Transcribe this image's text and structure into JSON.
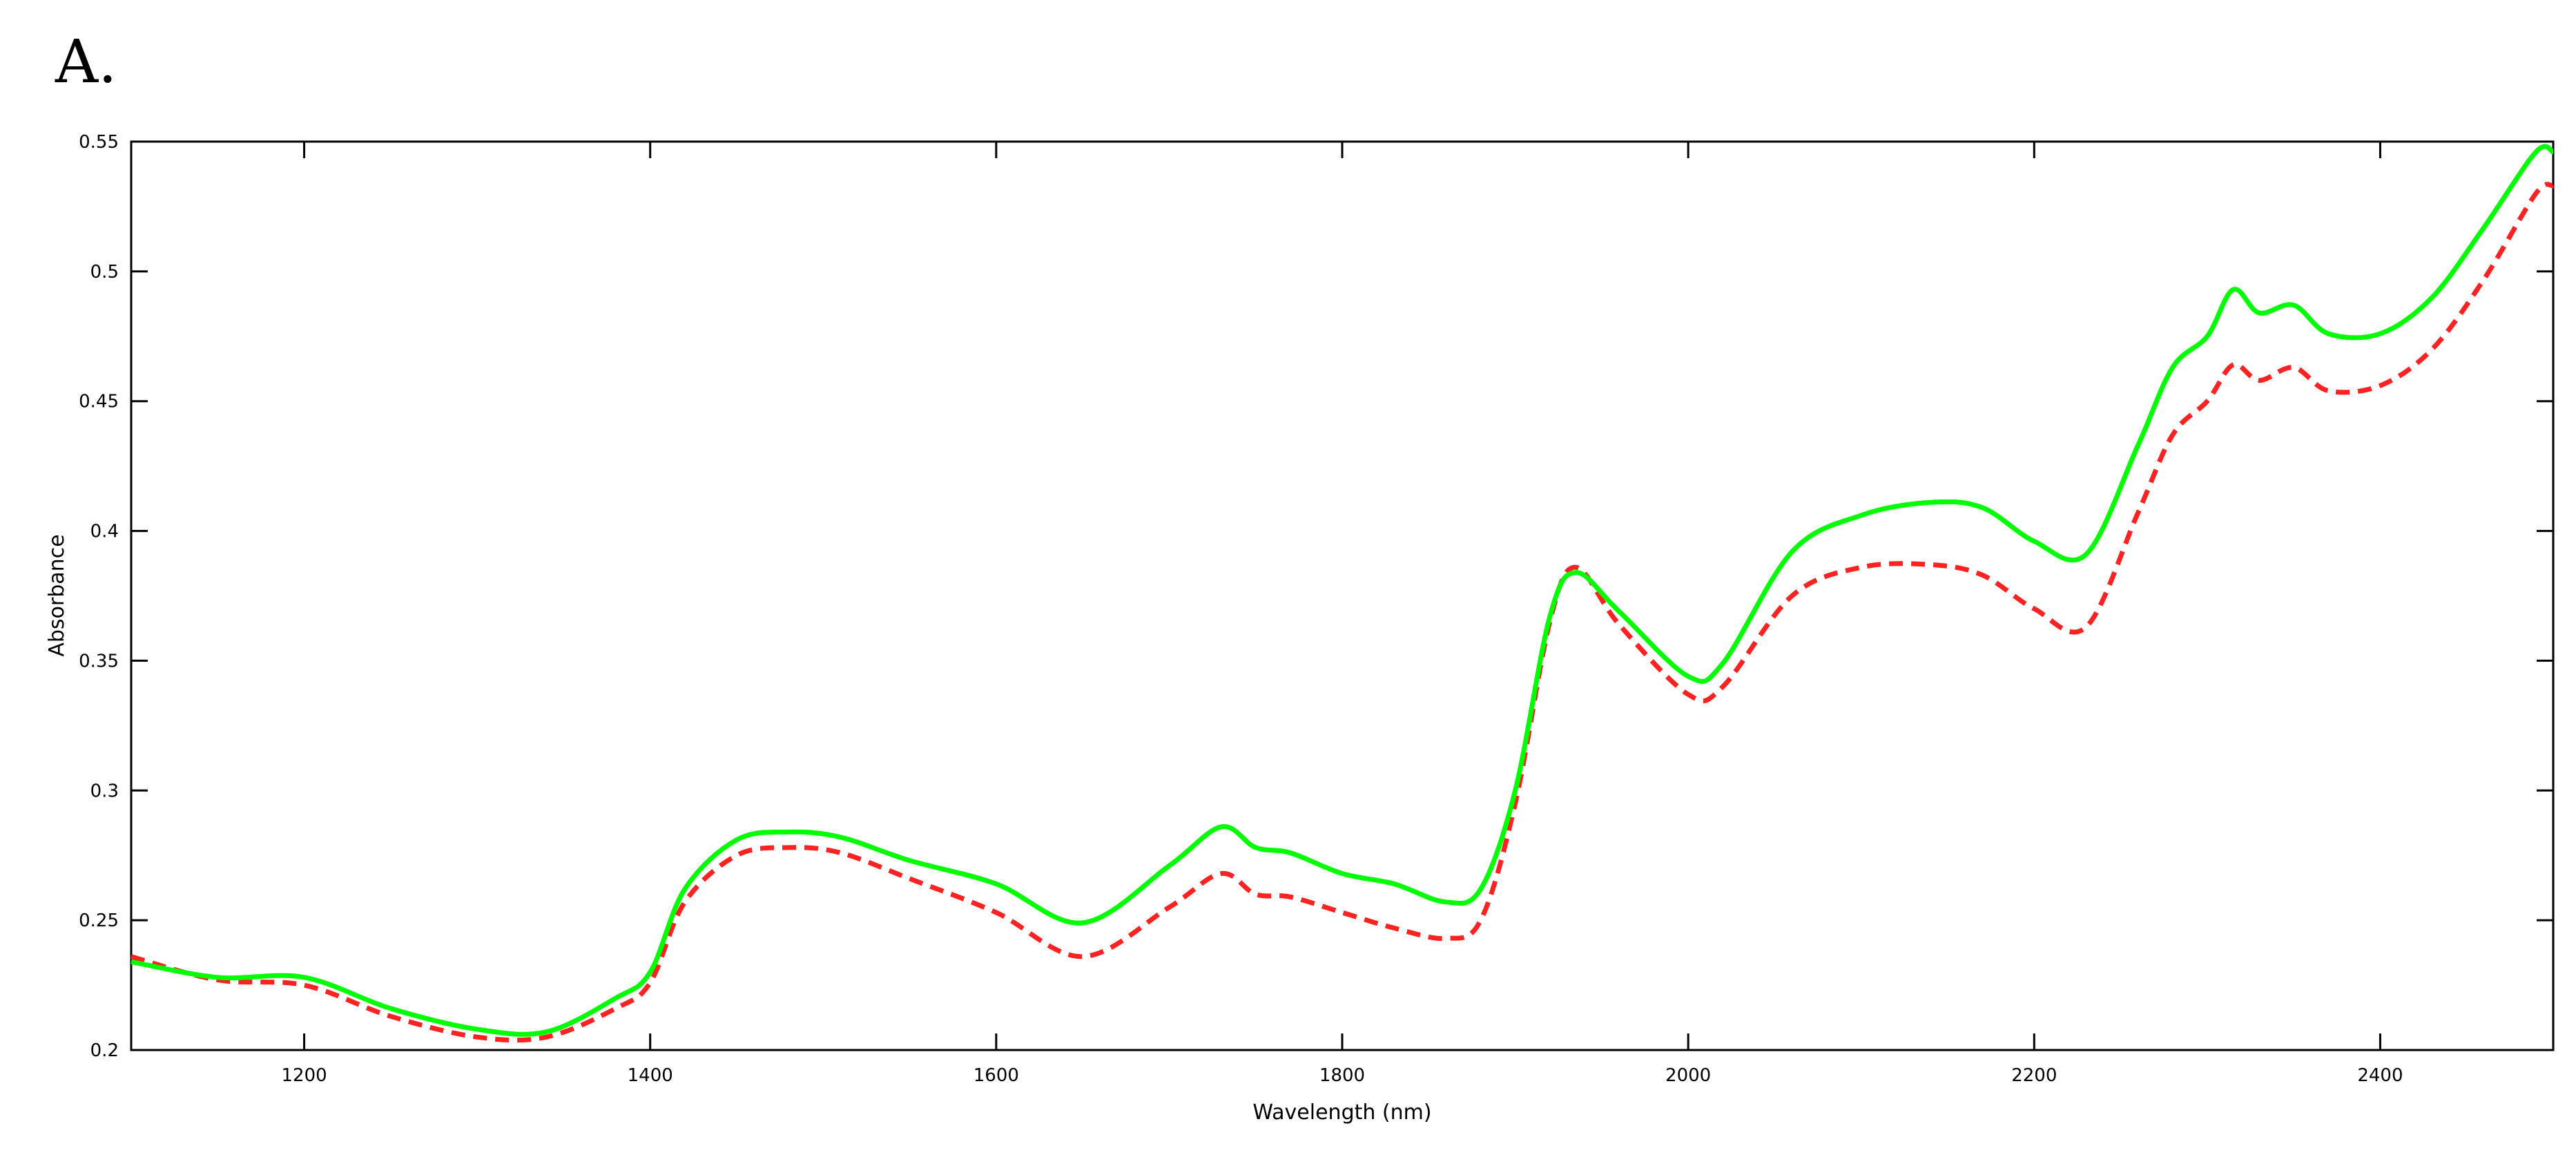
{
  "panel_label": "A.",
  "chart_data": {
    "type": "line",
    "title": "",
    "xlabel": "Wavelength (nm)",
    "ylabel": "Absorbance",
    "xlim": [
      1100,
      2500
    ],
    "ylim": [
      0.2,
      0.55
    ],
    "x_ticks": [
      1200,
      1400,
      1600,
      1800,
      2000,
      2200,
      2400
    ],
    "x_tick_labels": [
      "1200",
      "1400",
      "1600",
      "1800",
      "2000",
      "2200",
      "2400"
    ],
    "y_ticks": [
      0.2,
      0.25,
      0.3,
      0.35,
      0.4,
      0.45,
      0.5,
      0.55
    ],
    "y_tick_labels": [
      "0.2",
      "0.25",
      "0.3",
      "0.35",
      "0.4",
      "0.45",
      "0.5",
      "0.55"
    ],
    "grid": false,
    "legend": "none",
    "series": [
      {
        "color": "#00ff00",
        "style": "solid",
        "points": [
          [
            1100,
            0.234
          ],
          [
            1150,
            0.228
          ],
          [
            1200,
            0.228
          ],
          [
            1250,
            0.216
          ],
          [
            1300,
            0.208
          ],
          [
            1340,
            0.207
          ],
          [
            1380,
            0.22
          ],
          [
            1400,
            0.23
          ],
          [
            1420,
            0.262
          ],
          [
            1450,
            0.281
          ],
          [
            1480,
            0.284
          ],
          [
            1510,
            0.282
          ],
          [
            1550,
            0.273
          ],
          [
            1600,
            0.264
          ],
          [
            1650,
            0.249
          ],
          [
            1700,
            0.271
          ],
          [
            1730,
            0.286
          ],
          [
            1750,
            0.278
          ],
          [
            1770,
            0.276
          ],
          [
            1800,
            0.268
          ],
          [
            1830,
            0.264
          ],
          [
            1860,
            0.257
          ],
          [
            1880,
            0.262
          ],
          [
            1900,
            0.3
          ],
          [
            1920,
            0.367
          ],
          [
            1935,
            0.384
          ],
          [
            1960,
            0.369
          ],
          [
            2000,
            0.344
          ],
          [
            2020,
            0.349
          ],
          [
            2060,
            0.392
          ],
          [
            2100,
            0.406
          ],
          [
            2140,
            0.411
          ],
          [
            2170,
            0.409
          ],
          [
            2200,
            0.396
          ],
          [
            2230,
            0.391
          ],
          [
            2260,
            0.433
          ],
          [
            2280,
            0.463
          ],
          [
            2300,
            0.475
          ],
          [
            2315,
            0.493
          ],
          [
            2330,
            0.484
          ],
          [
            2350,
            0.487
          ],
          [
            2370,
            0.476
          ],
          [
            2400,
            0.476
          ],
          [
            2430,
            0.49
          ],
          [
            2460,
            0.517
          ],
          [
            2490,
            0.546
          ],
          [
            2500,
            0.546
          ]
        ]
      },
      {
        "color": "#ff2222",
        "style": "dashed",
        "points": [
          [
            1100,
            0.236
          ],
          [
            1150,
            0.227
          ],
          [
            1200,
            0.225
          ],
          [
            1250,
            0.213
          ],
          [
            1300,
            0.205
          ],
          [
            1340,
            0.205
          ],
          [
            1380,
            0.216
          ],
          [
            1400,
            0.226
          ],
          [
            1420,
            0.257
          ],
          [
            1450,
            0.275
          ],
          [
            1480,
            0.278
          ],
          [
            1510,
            0.276
          ],
          [
            1550,
            0.266
          ],
          [
            1600,
            0.253
          ],
          [
            1650,
            0.236
          ],
          [
            1700,
            0.255
          ],
          [
            1730,
            0.268
          ],
          [
            1750,
            0.26
          ],
          [
            1770,
            0.259
          ],
          [
            1800,
            0.253
          ],
          [
            1830,
            0.247
          ],
          [
            1860,
            0.243
          ],
          [
            1880,
            0.25
          ],
          [
            1900,
            0.295
          ],
          [
            1920,
            0.365
          ],
          [
            1935,
            0.386
          ],
          [
            1960,
            0.364
          ],
          [
            2000,
            0.337
          ],
          [
            2020,
            0.34
          ],
          [
            2060,
            0.375
          ],
          [
            2100,
            0.386
          ],
          [
            2140,
            0.387
          ],
          [
            2170,
            0.383
          ],
          [
            2200,
            0.37
          ],
          [
            2230,
            0.363
          ],
          [
            2260,
            0.407
          ],
          [
            2280,
            0.437
          ],
          [
            2300,
            0.45
          ],
          [
            2315,
            0.464
          ],
          [
            2330,
            0.458
          ],
          [
            2350,
            0.463
          ],
          [
            2370,
            0.454
          ],
          [
            2400,
            0.456
          ],
          [
            2430,
            0.47
          ],
          [
            2460,
            0.497
          ],
          [
            2490,
            0.53
          ],
          [
            2500,
            0.533
          ]
        ]
      }
    ]
  }
}
